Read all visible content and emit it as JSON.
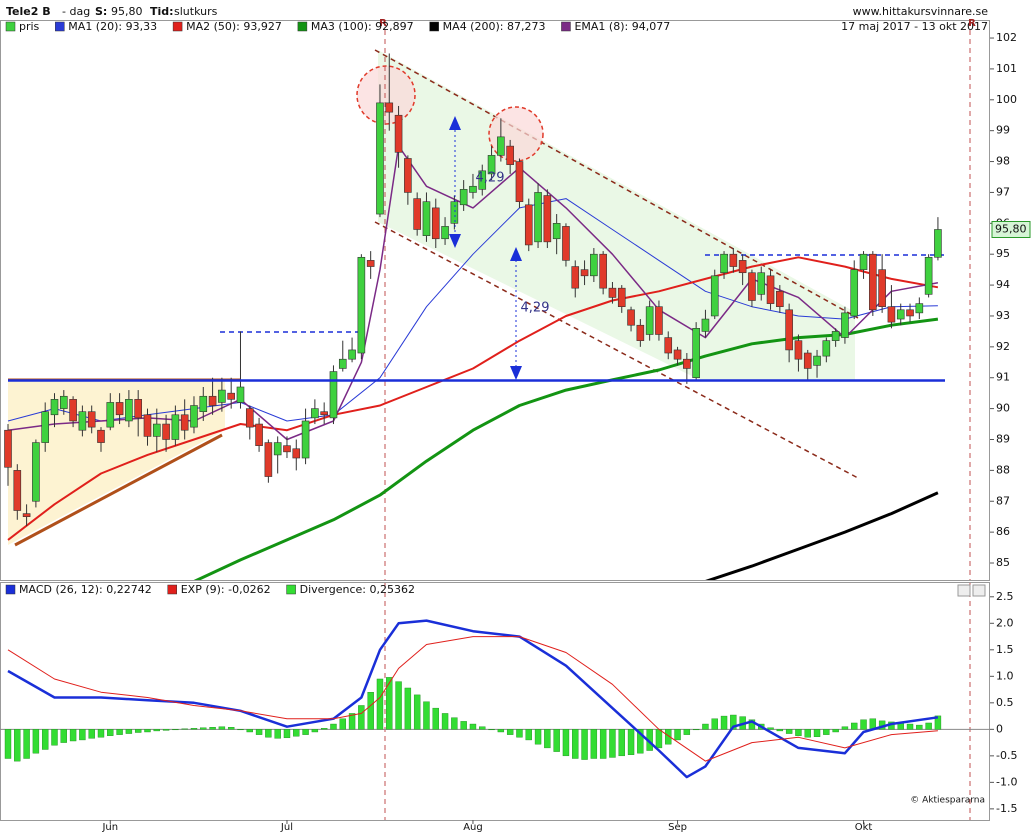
{
  "header": {
    "title": "Tele2 B",
    "interval": "- dag",
    "price_label": "S:",
    "price": "95,80",
    "time_label": "Tid:",
    "time": "slutkurs",
    "site": "www.hittakursvinnare.se",
    "date_range": "17 maj 2017 - 13 okt 2017",
    "copyright": "© Aktiespararna"
  },
  "chart_data": [
    {
      "type": "candlestick",
      "candles": {
        "name": "pris",
        "up_color": "#3fd13f",
        "down_color": "#e03a2a",
        "open": [
          89.3,
          88.0,
          86.6,
          87.0,
          88.9,
          89.8,
          90.0,
          90.3,
          89.3,
          89.9,
          89.3,
          89.4,
          90.2,
          89.6,
          90.3,
          89.8,
          89.1,
          89.5,
          89.0,
          89.8,
          89.4,
          89.9,
          90.4,
          90.2,
          90.5,
          90.2,
          90.0,
          89.5,
          88.9,
          88.5,
          88.8,
          88.7,
          88.4,
          89.7,
          89.9,
          89.7,
          91.3,
          91.6,
          91.8,
          94.8,
          96.3,
          99.9,
          99.5,
          98.1,
          96.8,
          95.6,
          96.5,
          95.5,
          96.0,
          96.6,
          97.0,
          97.1,
          97.6,
          98.2,
          98.5,
          98.0,
          96.6,
          95.4,
          96.9,
          95.5,
          95.9,
          94.6,
          94.5,
          94.3,
          95.0,
          93.9,
          93.9,
          93.2,
          92.7,
          92.4,
          93.3,
          92.3,
          91.9,
          91.6,
          91.0,
          92.5,
          93.0,
          94.4,
          95.0,
          94.8,
          94.4,
          93.7,
          94.3,
          93.8,
          93.2,
          92.2,
          91.8,
          91.4,
          91.7,
          92.2,
          92.3,
          93.0,
          94.5,
          95.0,
          94.5,
          93.3,
          92.9,
          93.2,
          93.1,
          93.7,
          94.9
        ],
        "close": [
          88.1,
          86.7,
          86.5,
          88.9,
          89.9,
          90.3,
          90.4,
          89.6,
          89.9,
          89.4,
          88.9,
          90.2,
          89.8,
          90.3,
          89.7,
          89.1,
          89.5,
          89.0,
          89.8,
          89.3,
          90.1,
          90.4,
          90.1,
          90.6,
          90.3,
          90.7,
          89.4,
          88.8,
          87.8,
          88.9,
          88.6,
          88.4,
          89.6,
          90.0,
          89.8,
          91.2,
          91.6,
          91.9,
          94.9,
          94.6,
          99.9,
          99.6,
          98.3,
          97.0,
          95.8,
          96.7,
          95.5,
          95.9,
          96.7,
          97.1,
          97.2,
          97.7,
          98.2,
          98.8,
          97.9,
          96.7,
          95.3,
          97.0,
          95.4,
          96.0,
          94.8,
          93.9,
          94.3,
          95.0,
          93.9,
          93.6,
          93.3,
          92.7,
          92.2,
          93.3,
          92.4,
          91.8,
          91.6,
          91.3,
          92.6,
          92.9,
          94.3,
          95.0,
          94.6,
          94.4,
          93.5,
          94.4,
          93.4,
          93.3,
          91.9,
          91.6,
          91.3,
          91.7,
          92.2,
          92.5,
          93.1,
          94.5,
          95.0,
          93.2,
          93.3,
          92.8,
          93.2,
          93.0,
          93.4,
          94.9,
          95.8
        ],
        "high": [
          89.5,
          88.2,
          86.9,
          89.0,
          90.2,
          90.5,
          90.6,
          90.4,
          90.1,
          90.1,
          89.4,
          90.5,
          90.5,
          90.6,
          90.6,
          90.0,
          90.0,
          89.8,
          90.1,
          90.3,
          90.4,
          90.7,
          91.0,
          91.0,
          91.0,
          92.5,
          90.1,
          89.7,
          89.0,
          89.1,
          89.1,
          89.0,
          90.0,
          90.3,
          90.2,
          91.4,
          92.2,
          92.3,
          95.0,
          95.1,
          100.5,
          101.5,
          99.8,
          98.2,
          97.0,
          97.0,
          96.8,
          96.2,
          96.9,
          97.4,
          97.6,
          97.9,
          98.5,
          99.4,
          98.7,
          98.1,
          96.8,
          97.3,
          97.1,
          96.3,
          96.0,
          94.8,
          94.8,
          95.2,
          95.1,
          94.1,
          94.0,
          93.3,
          92.9,
          93.5,
          93.5,
          92.5,
          92.0,
          91.8,
          92.8,
          93.2,
          94.5,
          95.1,
          95.2,
          95.0,
          94.5,
          94.6,
          94.5,
          94.0,
          93.4,
          92.4,
          91.9,
          91.9,
          92.3,
          92.6,
          93.3,
          94.8,
          95.1,
          95.1,
          95.0,
          94.0,
          93.4,
          93.4,
          93.6,
          95.0,
          96.2
        ],
        "low": [
          87.5,
          86.4,
          86.2,
          86.8,
          88.6,
          89.4,
          89.8,
          89.4,
          89.1,
          89.2,
          88.6,
          89.3,
          89.5,
          89.4,
          89.1,
          88.8,
          88.6,
          88.6,
          88.8,
          89.0,
          89.2,
          89.6,
          89.8,
          89.9,
          90.0,
          90.0,
          89.0,
          88.6,
          87.6,
          87.9,
          88.4,
          88.0,
          88.2,
          89.5,
          89.5,
          89.5,
          91.2,
          91.5,
          91.6,
          94.2,
          96.2,
          99.0,
          97.8,
          96.6,
          95.6,
          95.4,
          95.2,
          95.3,
          95.8,
          96.4,
          96.8,
          96.9,
          97.4,
          98.0,
          97.6,
          96.5,
          95.1,
          95.2,
          95.2,
          95.0,
          94.6,
          93.6,
          94.0,
          94.1,
          93.7,
          93.4,
          93.1,
          92.5,
          92.0,
          92.2,
          92.2,
          91.6,
          91.4,
          90.8,
          90.9,
          92.3,
          92.9,
          94.2,
          94.4,
          94.0,
          93.3,
          93.5,
          93.2,
          93.1,
          91.5,
          91.2,
          90.9,
          91.0,
          91.5,
          92.0,
          92.1,
          92.9,
          94.2,
          93.0,
          93.1,
          92.6,
          92.7,
          92.8,
          92.9,
          93.6,
          94.8
        ]
      },
      "series": [
        {
          "name": "MA1 (20): 93,33",
          "color": "#2a3bd6",
          "x": [
            0,
            5,
            10,
            15,
            20,
            25,
            30,
            35,
            40,
            45,
            50,
            55,
            60,
            65,
            70,
            75,
            80,
            85,
            90,
            95,
            100
          ],
          "values": [
            89.6,
            90.0,
            89.6,
            89.8,
            90.0,
            90.2,
            89.6,
            89.8,
            91.0,
            93.3,
            95.0,
            96.5,
            96.8,
            95.8,
            94.8,
            93.8,
            93.3,
            93.0,
            92.9,
            93.3,
            93.33
          ]
        },
        {
          "name": "MA2 (50): 93,927",
          "color": "#e0201c",
          "x": [
            0,
            5,
            10,
            15,
            20,
            25,
            30,
            35,
            40,
            45,
            50,
            55,
            60,
            65,
            70,
            75,
            80,
            85,
            90,
            95,
            100
          ],
          "values": [
            85.75,
            86.9,
            87.9,
            88.5,
            89.0,
            89.5,
            89.3,
            89.8,
            90.1,
            90.7,
            91.3,
            92.2,
            93.0,
            93.5,
            93.8,
            94.2,
            94.6,
            94.9,
            94.6,
            94.2,
            93.927
          ]
        },
        {
          "name": "MA3 (100): 92,897",
          "color": "#139413",
          "x": [
            20,
            25,
            30,
            35,
            40,
            45,
            50,
            55,
            60,
            65,
            70,
            75,
            80,
            85,
            90,
            95,
            100
          ],
          "values": [
            84.4,
            85.1,
            85.75,
            86.4,
            87.2,
            88.3,
            89.3,
            90.1,
            90.6,
            90.93,
            91.25,
            91.7,
            92.1,
            92.3,
            92.4,
            92.7,
            92.897
          ]
        },
        {
          "name": "MA4 (200): 87,273",
          "color": "#000000",
          "x": [
            75,
            80,
            85,
            90,
            95,
            100
          ],
          "values": [
            84.4,
            84.9,
            85.45,
            86.0,
            86.6,
            87.273
          ]
        },
        {
          "name": "EMA1 (8): 94,077",
          "color": "#7b2a86",
          "x": [
            0,
            5,
            10,
            15,
            20,
            25,
            30,
            35,
            38,
            40,
            42,
            45,
            50,
            55,
            60,
            65,
            70,
            75,
            80,
            85,
            90,
            95,
            100
          ],
          "values": [
            89.3,
            89.5,
            89.6,
            89.7,
            89.6,
            90.3,
            89.0,
            89.6,
            91.5,
            94.5,
            98.5,
            97.2,
            96.5,
            97.8,
            96.5,
            95.0,
            93.2,
            92.3,
            94.2,
            93.6,
            92.3,
            93.8,
            94.077
          ]
        }
      ],
      "last_label": "95,80",
      "annotations": [
        "4,29",
        "4,29",
        "R",
        "R"
      ],
      "xlim": [
        -0.86,
        105.6
      ],
      "ylim": [
        84.45,
        102.26
      ],
      "yticks": [
        85,
        86,
        87,
        88,
        89,
        90,
        91,
        92,
        93,
        94,
        95,
        96,
        97,
        98,
        99,
        100,
        101,
        102
      ]
    },
    {
      "type": "macd",
      "series": [
        {
          "name": "MACD (26, 12): 0,22742",
          "color": "#1a2fd8",
          "x": [
            0,
            5,
            10,
            15,
            20,
            25,
            30,
            35,
            38,
            40,
            42,
            45,
            50,
            55,
            60,
            65,
            70,
            73,
            75,
            78,
            80,
            85,
            90,
            92,
            95,
            100
          ],
          "values": [
            1.1,
            0.6,
            0.6,
            0.55,
            0.5,
            0.35,
            0.05,
            0.2,
            0.6,
            1.5,
            2.0,
            2.05,
            1.85,
            1.75,
            1.2,
            0.4,
            -0.4,
            -0.9,
            -0.7,
            0.05,
            0.15,
            -0.35,
            -0.45,
            -0.05,
            0.1,
            0.22742
          ]
        },
        {
          "name": "EXP (9): -0,0262",
          "color": "#e0201c",
          "x": [
            0,
            5,
            10,
            15,
            20,
            25,
            30,
            35,
            38,
            40,
            42,
            45,
            50,
            55,
            60,
            65,
            70,
            75,
            80,
            85,
            90,
            95,
            100
          ],
          "values": [
            1.5,
            0.95,
            0.7,
            0.6,
            0.45,
            0.35,
            0.2,
            0.2,
            0.3,
            0.6,
            1.15,
            1.6,
            1.75,
            1.75,
            1.45,
            0.85,
            0.0,
            -0.6,
            -0.25,
            -0.15,
            -0.35,
            -0.1,
            -0.0262
          ]
        },
        {
          "name": "Divergence: 0,25362",
          "color": "#33dd33",
          "values": [
            -0.55,
            -0.6,
            -0.55,
            -0.45,
            -0.38,
            -0.3,
            -0.25,
            -0.22,
            -0.2,
            -0.17,
            -0.15,
            -0.12,
            -0.1,
            -0.08,
            -0.06,
            -0.05,
            -0.03,
            -0.02,
            0.0,
            0.01,
            0.02,
            0.03,
            0.04,
            0.05,
            0.04,
            0.0,
            -0.05,
            -0.1,
            -0.15,
            -0.17,
            -0.16,
            -0.13,
            -0.1,
            -0.05,
            0.02,
            0.1,
            0.2,
            0.3,
            0.45,
            0.7,
            0.95,
            0.98,
            0.9,
            0.78,
            0.65,
            0.52,
            0.4,
            0.3,
            0.22,
            0.15,
            0.1,
            0.05,
            0.0,
            -0.05,
            -0.1,
            -0.15,
            -0.2,
            -0.28,
            -0.35,
            -0.42,
            -0.5,
            -0.55,
            -0.57,
            -0.55,
            -0.55,
            -0.53,
            -0.5,
            -0.48,
            -0.45,
            -0.4,
            -0.35,
            -0.28,
            -0.2,
            -0.1,
            0.0,
            0.1,
            0.2,
            0.25,
            0.27,
            0.24,
            0.18,
            0.1,
            0.03,
            -0.03,
            -0.08,
            -0.12,
            -0.15,
            -0.14,
            -0.1,
            -0.05,
            0.05,
            0.12,
            0.18,
            0.2,
            0.16,
            0.14,
            0.12,
            0.1,
            0.08,
            0.12,
            0.25362
          ]
        }
      ],
      "xlim": [
        -0.86,
        105.6
      ],
      "ylim": [
        -1.71,
        2.76
      ],
      "yticks": [
        2.5,
        {
          "value": 2,
          "label": "2.0"
        },
        1.5,
        {
          "value": 1,
          "label": "1.0"
        },
        0.5,
        0,
        -0.5,
        {
          "value": -1,
          "label": "-1.0"
        },
        -1.5
      ],
      "xticks": [
        {
          "value": 11,
          "label": "Jun"
        },
        {
          "value": 30,
          "label": "Jul"
        },
        {
          "value": 50,
          "label": "Aug"
        },
        {
          "value": 72,
          "label": "Sep"
        },
        {
          "value": 92,
          "label": "Okt"
        }
      ]
    }
  ]
}
